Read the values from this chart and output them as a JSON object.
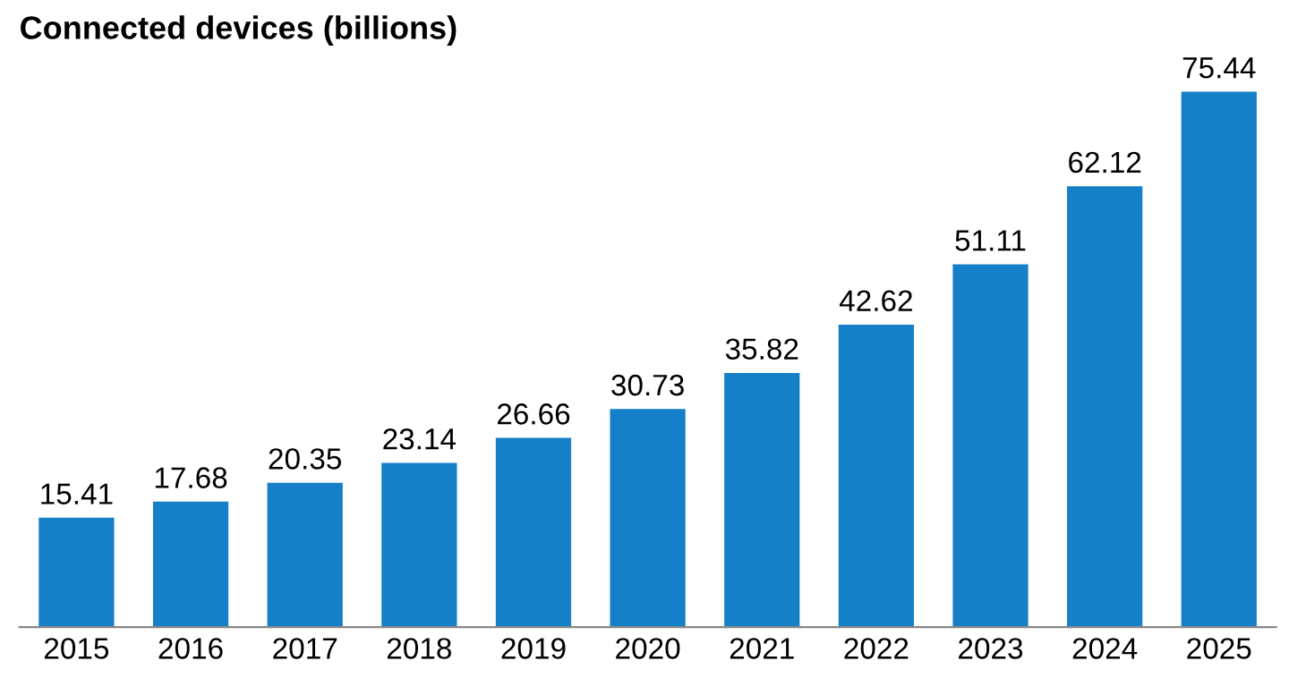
{
  "chart_data": {
    "type": "bar",
    "title": "Connected devices (billions)",
    "categories": [
      "2015",
      "2016",
      "2017",
      "2018",
      "2019",
      "2020",
      "2021",
      "2022",
      "2023",
      "2024",
      "2025"
    ],
    "values": [
      15.41,
      17.68,
      20.35,
      23.14,
      26.66,
      30.73,
      35.82,
      42.62,
      51.11,
      62.12,
      75.44
    ],
    "color": "#1580c8",
    "data_labels": true,
    "grid": false,
    "legend": false
  }
}
